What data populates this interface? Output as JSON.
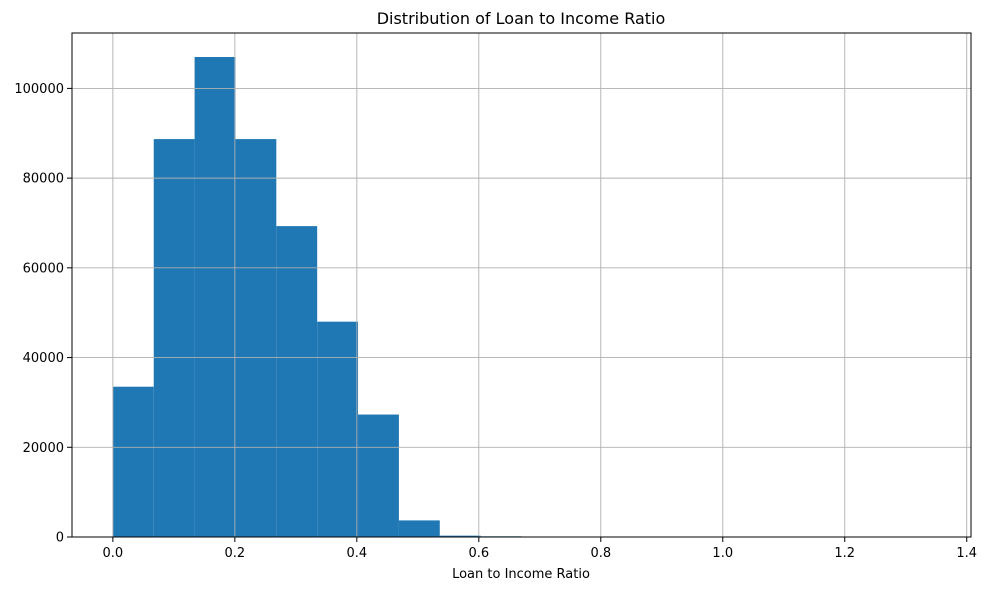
{
  "chart_data": {
    "type": "bar",
    "title": "Distribution of Loan to Income Ratio",
    "xlabel": "Loan to Income Ratio",
    "ylabel": "",
    "bins": [
      {
        "x0": 0.0,
        "x1": 0.067,
        "value": 33500
      },
      {
        "x0": 0.067,
        "x1": 0.134,
        "value": 88700
      },
      {
        "x0": 0.134,
        "x1": 0.201,
        "value": 107000
      },
      {
        "x0": 0.201,
        "x1": 0.268,
        "value": 88700
      },
      {
        "x0": 0.268,
        "x1": 0.335,
        "value": 69300
      },
      {
        "x0": 0.335,
        "x1": 0.402,
        "value": 48000
      },
      {
        "x0": 0.402,
        "x1": 0.469,
        "value": 27300
      },
      {
        "x0": 0.469,
        "x1": 0.536,
        "value": 3700
      },
      {
        "x0": 0.536,
        "x1": 0.603,
        "value": 300
      },
      {
        "x0": 0.603,
        "x1": 0.67,
        "value": 150
      },
      {
        "x0": 0.67,
        "x1": 0.737,
        "value": 40
      },
      {
        "x0": 0.737,
        "x1": 0.804,
        "value": 20
      },
      {
        "x0": 0.804,
        "x1": 0.871,
        "value": 10
      },
      {
        "x0": 0.871,
        "x1": 0.938,
        "value": 5
      },
      {
        "x0": 0.938,
        "x1": 1.005,
        "value": 3
      },
      {
        "x0": 1.005,
        "x1": 1.072,
        "value": 2
      },
      {
        "x0": 1.072,
        "x1": 1.139,
        "value": 1
      },
      {
        "x0": 1.139,
        "x1": 1.206,
        "value": 1
      },
      {
        "x0": 1.206,
        "x1": 1.273,
        "value": 1
      },
      {
        "x0": 1.273,
        "x1": 1.34,
        "value": 1
      }
    ],
    "xlim": [
      -0.067,
      1.407
    ],
    "ylim": [
      0,
      112350
    ],
    "xticks": [
      0.0,
      0.2,
      0.4,
      0.6,
      0.8,
      1.0,
      1.2,
      1.4
    ],
    "xtick_labels": [
      "0.0",
      "0.2",
      "0.4",
      "0.6",
      "0.8",
      "1.0",
      "1.2",
      "1.4"
    ],
    "yticks": [
      0,
      20000,
      40000,
      60000,
      80000,
      100000
    ],
    "ytick_labels": [
      "0",
      "20000",
      "40000",
      "60000",
      "80000",
      "100000"
    ],
    "grid": true,
    "bar_color": "#1f77b4"
  }
}
